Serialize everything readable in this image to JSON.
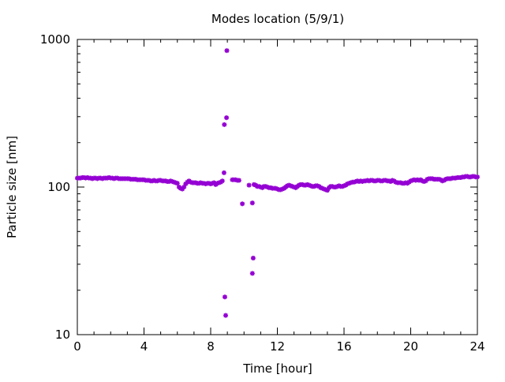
{
  "chart_data": {
    "type": "scatter",
    "title": "Modes location (5/9/1)",
    "xlabel": "Time [hour]",
    "ylabel": "Particle size [nm]",
    "xlim": [
      0,
      24
    ],
    "ylim": [
      10,
      1000
    ],
    "yscale": "log",
    "grid": false,
    "legend": "none",
    "x_ticks": [
      0,
      4,
      8,
      12,
      16,
      20,
      24
    ],
    "x_tick_labels": [
      "0",
      "4",
      "8",
      "12",
      "16",
      "20",
      "24"
    ],
    "y_ticks": [
      10,
      100,
      1000
    ],
    "y_tick_labels": [
      "10",
      "100",
      "1000"
    ],
    "marker_color": "#9400d3",
    "series": [
      {
        "points": [
          [
            0.0,
            115
          ],
          [
            0.1,
            115
          ],
          [
            0.2,
            115
          ],
          [
            0.3,
            116
          ],
          [
            0.4,
            116
          ],
          [
            0.5,
            115
          ],
          [
            0.6,
            116
          ],
          [
            0.7,
            115
          ],
          [
            0.8,
            115
          ],
          [
            0.9,
            114
          ],
          [
            1.0,
            115
          ],
          [
            1.1,
            115
          ],
          [
            1.2,
            114
          ],
          [
            1.3,
            115
          ],
          [
            1.4,
            115
          ],
          [
            1.5,
            114
          ],
          [
            1.6,
            115
          ],
          [
            1.7,
            115
          ],
          [
            1.8,
            115
          ],
          [
            1.9,
            116
          ],
          [
            2.0,
            115
          ],
          [
            2.1,
            115
          ],
          [
            2.2,
            114
          ],
          [
            2.3,
            115
          ],
          [
            2.4,
            115
          ],
          [
            2.5,
            114
          ],
          [
            2.6,
            114
          ],
          [
            2.7,
            114
          ],
          [
            2.8,
            114
          ],
          [
            2.9,
            114
          ],
          [
            3.0,
            114
          ],
          [
            3.1,
            114
          ],
          [
            3.2,
            113
          ],
          [
            3.3,
            113
          ],
          [
            3.4,
            113
          ],
          [
            3.5,
            113
          ],
          [
            3.6,
            112
          ],
          [
            3.7,
            112
          ],
          [
            3.8,
            112
          ],
          [
            3.9,
            112
          ],
          [
            4.0,
            112
          ],
          [
            4.1,
            111
          ],
          [
            4.2,
            111
          ],
          [
            4.3,
            111
          ],
          [
            4.4,
            110
          ],
          [
            4.5,
            110
          ],
          [
            4.6,
            111
          ],
          [
            4.7,
            110
          ],
          [
            4.8,
            110
          ],
          [
            4.9,
            111
          ],
          [
            5.0,
            111
          ],
          [
            5.1,
            110
          ],
          [
            5.2,
            110
          ],
          [
            5.3,
            110
          ],
          [
            5.4,
            109
          ],
          [
            5.5,
            109
          ],
          [
            5.6,
            110
          ],
          [
            5.7,
            109
          ],
          [
            5.8,
            108
          ],
          [
            5.9,
            107
          ],
          [
            6.0,
            106
          ],
          [
            6.1,
            100
          ],
          [
            6.2,
            98
          ],
          [
            6.3,
            97
          ],
          [
            6.4,
            100
          ],
          [
            6.5,
            105
          ],
          [
            6.6,
            108
          ],
          [
            6.7,
            110
          ],
          [
            6.8,
            108
          ],
          [
            6.9,
            107
          ],
          [
            7.0,
            107
          ],
          [
            7.1,
            107
          ],
          [
            7.2,
            106
          ],
          [
            7.3,
            106
          ],
          [
            7.4,
            107
          ],
          [
            7.5,
            106
          ],
          [
            7.6,
            106
          ],
          [
            7.7,
            105
          ],
          [
            7.8,
            106
          ],
          [
            7.9,
            106
          ],
          [
            8.0,
            105
          ],
          [
            8.1,
            106
          ],
          [
            8.2,
            107
          ],
          [
            8.3,
            104
          ],
          [
            8.4,
            106
          ],
          [
            8.5,
            107
          ],
          [
            8.6,
            108
          ],
          [
            8.7,
            110
          ],
          [
            8.8,
            125
          ],
          [
            8.82,
            265
          ],
          [
            8.85,
            18
          ],
          [
            8.9,
            13.5
          ],
          [
            8.95,
            295
          ],
          [
            8.97,
            840
          ],
          [
            9.3,
            112
          ],
          [
            9.4,
            112
          ],
          [
            9.5,
            112
          ],
          [
            9.6,
            111
          ],
          [
            9.7,
            111
          ],
          [
            9.9,
            77
          ],
          [
            10.3,
            103
          ],
          [
            10.5,
            78
          ],
          [
            10.5,
            26
          ],
          [
            10.55,
            33
          ],
          [
            10.6,
            104
          ],
          [
            10.7,
            103
          ],
          [
            10.8,
            101
          ],
          [
            10.9,
            101
          ],
          [
            11.0,
            100
          ],
          [
            11.1,
            99
          ],
          [
            11.2,
            101
          ],
          [
            11.3,
            101
          ],
          [
            11.4,
            100
          ],
          [
            11.5,
            99
          ],
          [
            11.6,
            99
          ],
          [
            11.7,
            98
          ],
          [
            11.8,
            98
          ],
          [
            11.9,
            98
          ],
          [
            12.0,
            97
          ],
          [
            12.1,
            96
          ],
          [
            12.2,
            96
          ],
          [
            12.3,
            97
          ],
          [
            12.4,
            98
          ],
          [
            12.5,
            100
          ],
          [
            12.6,
            102
          ],
          [
            12.7,
            103
          ],
          [
            12.8,
            102
          ],
          [
            12.9,
            101
          ],
          [
            13.0,
            100
          ],
          [
            13.1,
            99
          ],
          [
            13.2,
            101
          ],
          [
            13.3,
            103
          ],
          [
            13.4,
            104
          ],
          [
            13.5,
            104
          ],
          [
            13.6,
            103
          ],
          [
            13.7,
            103
          ],
          [
            13.8,
            104
          ],
          [
            13.9,
            103
          ],
          [
            14.0,
            102
          ],
          [
            14.1,
            101
          ],
          [
            14.2,
            101
          ],
          [
            14.3,
            102
          ],
          [
            14.4,
            102
          ],
          [
            14.5,
            101
          ],
          [
            14.6,
            99
          ],
          [
            14.7,
            98
          ],
          [
            14.8,
            97
          ],
          [
            14.9,
            96
          ],
          [
            15.0,
            95
          ],
          [
            15.1,
            99
          ],
          [
            15.2,
            101
          ],
          [
            15.3,
            101
          ],
          [
            15.4,
            100
          ],
          [
            15.5,
            100
          ],
          [
            15.6,
            101
          ],
          [
            15.7,
            102
          ],
          [
            15.8,
            101
          ],
          [
            15.9,
            101
          ],
          [
            16.0,
            102
          ],
          [
            16.1,
            103
          ],
          [
            16.2,
            105
          ],
          [
            16.3,
            106
          ],
          [
            16.4,
            107
          ],
          [
            16.5,
            108
          ],
          [
            16.6,
            108
          ],
          [
            16.7,
            109
          ],
          [
            16.8,
            110
          ],
          [
            16.9,
            109
          ],
          [
            17.0,
            110
          ],
          [
            17.1,
            109
          ],
          [
            17.2,
            110
          ],
          [
            17.3,
            110
          ],
          [
            17.4,
            111
          ],
          [
            17.5,
            110
          ],
          [
            17.6,
            111
          ],
          [
            17.7,
            111
          ],
          [
            17.8,
            110
          ],
          [
            17.9,
            110
          ],
          [
            18.0,
            111
          ],
          [
            18.1,
            111
          ],
          [
            18.2,
            110
          ],
          [
            18.3,
            110
          ],
          [
            18.4,
            111
          ],
          [
            18.5,
            111
          ],
          [
            18.6,
            110
          ],
          [
            18.7,
            110
          ],
          [
            18.8,
            109
          ],
          [
            18.9,
            111
          ],
          [
            19.0,
            110
          ],
          [
            19.1,
            108
          ],
          [
            19.2,
            107
          ],
          [
            19.3,
            107
          ],
          [
            19.4,
            107
          ],
          [
            19.5,
            106
          ],
          [
            19.6,
            106
          ],
          [
            19.7,
            107
          ],
          [
            19.8,
            106
          ],
          [
            19.9,
            108
          ],
          [
            20.0,
            110
          ],
          [
            20.1,
            111
          ],
          [
            20.2,
            112
          ],
          [
            20.3,
            111
          ],
          [
            20.4,
            112
          ],
          [
            20.5,
            111
          ],
          [
            20.6,
            112
          ],
          [
            20.7,
            110
          ],
          [
            20.8,
            109
          ],
          [
            20.9,
            110
          ],
          [
            21.0,
            113
          ],
          [
            21.1,
            114
          ],
          [
            21.2,
            114
          ],
          [
            21.3,
            114
          ],
          [
            21.4,
            113
          ],
          [
            21.5,
            113
          ],
          [
            21.6,
            113
          ],
          [
            21.7,
            113
          ],
          [
            21.8,
            112
          ],
          [
            21.9,
            110
          ],
          [
            22.0,
            111
          ],
          [
            22.1,
            113
          ],
          [
            22.2,
            114
          ],
          [
            22.3,
            114
          ],
          [
            22.4,
            114
          ],
          [
            22.5,
            115
          ],
          [
            22.6,
            115
          ],
          [
            22.7,
            115
          ],
          [
            22.8,
            116
          ],
          [
            22.9,
            116
          ],
          [
            23.0,
            116
          ],
          [
            23.1,
            117
          ],
          [
            23.2,
            117
          ],
          [
            23.3,
            118
          ],
          [
            23.4,
            118
          ],
          [
            23.5,
            117
          ],
          [
            23.6,
            117
          ],
          [
            23.7,
            118
          ],
          [
            23.8,
            118
          ],
          [
            23.9,
            117
          ],
          [
            24.0,
            117
          ]
        ]
      }
    ]
  }
}
